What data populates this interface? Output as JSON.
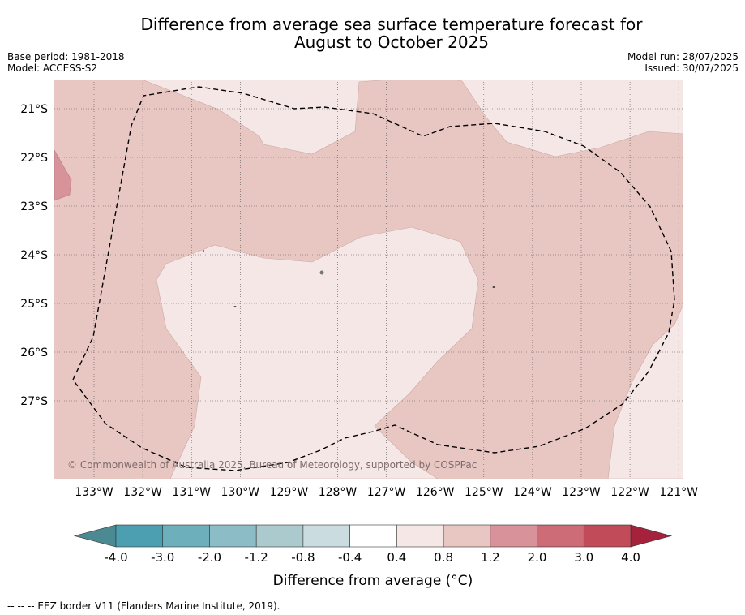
{
  "title": {
    "line1": "Difference from average sea surface temperature forecast for",
    "line2": "August to October 2025"
  },
  "meta_left": {
    "base_period": "Base period: 1981-2018",
    "model": "Model: ACCESS-S2"
  },
  "meta_right": {
    "model_run": "Model run: 28/07/2025",
    "issued": "Issued: 30/07/2025"
  },
  "map": {
    "lon_labels": [
      "133°W",
      "132°W",
      "131°W",
      "130°W",
      "129°W",
      "128°W",
      "127°W",
      "126°W",
      "125°W",
      "124°W",
      "123°W",
      "122°W",
      "121°W"
    ],
    "lat_labels": [
      "21°S",
      "22°S",
      "23°S",
      "24°S",
      "25°S",
      "26°S",
      "27°S"
    ],
    "copyright": "© Commonwealth of Australia 2025, Bureau of Meteorology, supported by COSPPac",
    "colors": {
      "band_0.4_0.8": "#f5e7e6",
      "band_0.8_1.2": "#e8c7c3",
      "band_1.2_2.0": "#d8929a"
    }
  },
  "colorbar": {
    "labels": [
      "-4.0",
      "-3.0",
      "-2.0",
      "-1.2",
      "-0.8",
      "-0.4",
      "0.4",
      "0.8",
      "1.2",
      "2.0",
      "3.0",
      "4.0"
    ],
    "colors": [
      "#4b9fb1",
      "#6eafbc",
      "#8cbcc6",
      "#abcace",
      "#cbdce0",
      "#ffffff",
      "#f5e7e6",
      "#e8c7c3",
      "#d8929a",
      "#cd6c76",
      "#c14b59"
    ],
    "under_color": "#4b8a93",
    "over_color": "#a6213b",
    "title": "Difference from average (°C)"
  },
  "footer": "--  --  -- EEZ border V11 (Flanders Marine Institute, 2019)."
}
